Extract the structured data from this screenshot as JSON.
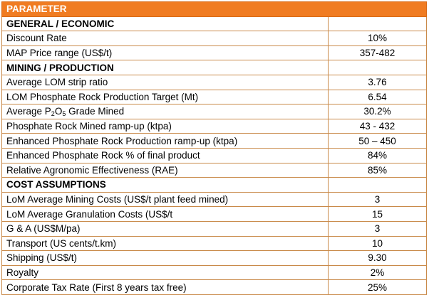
{
  "header": "PARAMETER",
  "sections": [
    {
      "title": "GENERAL / ECONOMIC",
      "rows": [
        {
          "label": "Discount Rate",
          "value": "10%"
        },
        {
          "label": "MAP Price range (US$/t)",
          "value": "357-482"
        }
      ]
    },
    {
      "title": "MINING / PRODUCTION",
      "rows": [
        {
          "label": "Average LOM strip ratio",
          "value": "3.76"
        },
        {
          "label": "LOM Phosphate Rock Production Target (Mt)",
          "value": "6.54"
        },
        {
          "label_pre": "Average P",
          "sub1": "2",
          "label_mid": "O",
          "sub2": "5",
          "label_post": " Grade Mined",
          "value": "30.2%"
        },
        {
          "label": "Phosphate Rock Mined ramp-up (ktpa)",
          "value": "43 - 432"
        },
        {
          "label": "Enhanced Phosphate Rock Production ramp-up (ktpa)",
          "value": "50 – 450"
        },
        {
          "label": "Enhanced Phosphate Rock % of final product",
          "value": "84%"
        },
        {
          "label": "Relative Agronomic Effectiveness (RAE)",
          "value": "85%"
        }
      ]
    },
    {
      "title": "COST ASSUMPTIONS",
      "rows": [
        {
          "label": "LoM Average Mining Costs (US$/t plant feed mined)",
          "value": "3"
        },
        {
          "label": "LoM Average Granulation Costs (US$/t",
          "value": "15"
        },
        {
          "label": "G & A (US$M/pa)",
          "value": "3"
        },
        {
          "label": "Transport (US cents/t.km)",
          "value": "10"
        },
        {
          "label": "Shipping (US$/t)",
          "value": "9.30"
        },
        {
          "label": "Royalty",
          "value": "2%"
        },
        {
          "label": "Corporate Tax Rate (First 8 years tax free)",
          "value": "25%"
        }
      ]
    }
  ],
  "colors": {
    "header_bg": "#f07c22",
    "border": "#c98a4a"
  }
}
